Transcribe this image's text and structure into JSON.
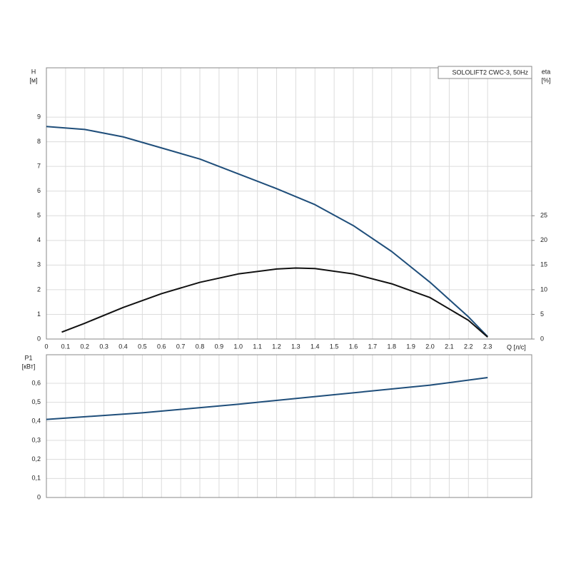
{
  "chart_data": [
    {
      "type": "line",
      "title": "SOLOLIFT2 CWC-3, 50Hz",
      "ylabel": "H",
      "yunit": "[м]",
      "y2label": "eta",
      "y2unit": "[%]",
      "xlabel": "Q [л/с]",
      "xlim": [
        0,
        2.53
      ],
      "xticks": [
        0,
        0.1,
        0.2,
        0.3,
        0.4,
        0.5,
        0.6,
        0.7,
        0.8,
        0.9,
        {
          "value": 1.0,
          "label": "1.0"
        },
        1.1,
        1.2,
        1.3,
        1.4,
        1.5,
        1.6,
        1.7,
        1.8,
        1.9,
        {
          "value": 2.0,
          "label": "2.0"
        },
        2.1,
        2.2,
        2.3
      ],
      "ylim": [
        0,
        11
      ],
      "yticks": [
        0,
        1,
        2,
        3,
        4,
        5,
        6,
        7,
        8,
        9
      ],
      "y2lim": [
        0,
        55
      ],
      "y2ticks": [
        0,
        5,
        10,
        15,
        20,
        25
      ],
      "grid": true,
      "series": [
        {
          "color": "#1f4e7a",
          "x": [
            0,
            0.2,
            0.4,
            0.6,
            0.8,
            1.0,
            1.2,
            1.4,
            1.6,
            1.8,
            2.0,
            2.2,
            2.3
          ],
          "values": [
            8.62,
            8.5,
            8.2,
            7.75,
            7.3,
            6.7,
            6.1,
            5.45,
            4.6,
            3.55,
            2.3,
            0.9,
            0.1
          ]
        },
        {
          "color": "#111111",
          "axis": "y2",
          "x": [
            0.08,
            0.2,
            0.4,
            0.6,
            0.8,
            1.0,
            1.2,
            1.3,
            1.4,
            1.6,
            1.8,
            2.0,
            2.2,
            2.3
          ],
          "values": [
            1.4,
            3.2,
            6.4,
            9.2,
            11.5,
            13.2,
            14.2,
            14.4,
            14.3,
            13.2,
            11.2,
            8.4,
            3.8,
            0.4
          ]
        }
      ]
    },
    {
      "type": "line",
      "ylabel": "P1",
      "yunit": "[кВт]",
      "xlim": [
        0,
        2.53
      ],
      "ylim": [
        0,
        0.75
      ],
      "yticks": [
        0,
        {
          "value": 0.1,
          "label": "0,1"
        },
        {
          "value": 0.2,
          "label": "0,2"
        },
        {
          "value": 0.3,
          "label": "0,3"
        },
        {
          "value": 0.4,
          "label": "0,4"
        },
        {
          "value": 0.5,
          "label": "0,5"
        },
        {
          "value": 0.6,
          "label": "0,6"
        }
      ],
      "grid": true,
      "series": [
        {
          "color": "#1f4e7a",
          "x": [
            0,
            0.5,
            1.0,
            1.5,
            2.0,
            2.3
          ],
          "values": [
            0.41,
            0.445,
            0.49,
            0.54,
            0.59,
            0.63
          ]
        }
      ]
    }
  ]
}
